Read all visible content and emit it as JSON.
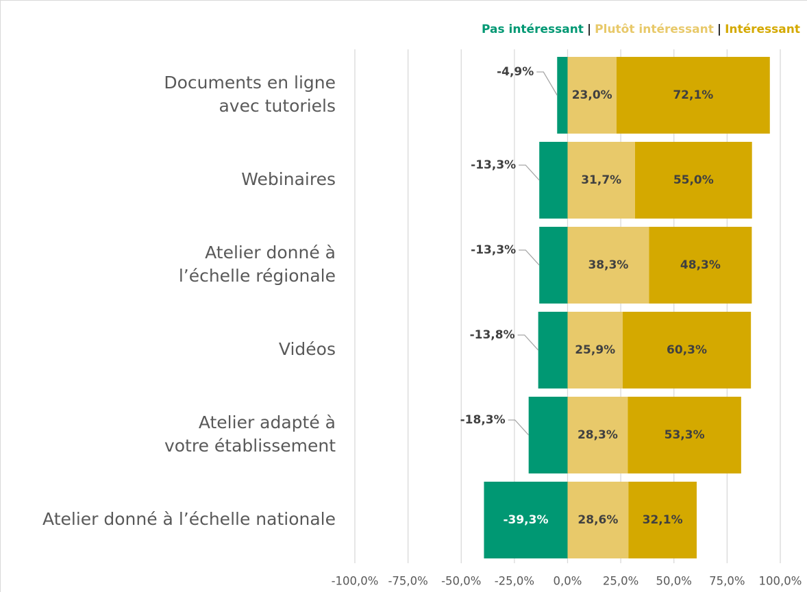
{
  "chart_data": {
    "type": "diverging_bar",
    "categories": [
      "Documents en ligne\navec tutoriels",
      "Webinaires",
      "Atelier donné à\nl’échelle régionale",
      "Vidéos",
      "Atelier adapté à\nvotre établissement",
      "Atelier donné à l’échelle nationale"
    ],
    "series": [
      {
        "name": "Pas intéressant",
        "color": "#009873",
        "values": [
          -4.9,
          -13.3,
          -13.3,
          -13.8,
          -18.3,
          -39.3
        ],
        "value_labels": [
          "-4,9%",
          "-13,3%",
          "-13,3%",
          "-13,8%",
          "-18,3%",
          "-39,3%"
        ]
      },
      {
        "name": "Plutôt intéressant",
        "color": "#e8c96a",
        "values": [
          23.0,
          31.7,
          38.3,
          25.9,
          28.3,
          28.6
        ],
        "value_labels": [
          "23,0%",
          "31,7%",
          "38,3%",
          "25,9%",
          "28,3%",
          "28,6%"
        ]
      },
      {
        "name": "Intéressant",
        "color": "#d4a900",
        "values": [
          72.1,
          55.0,
          48.3,
          60.3,
          53.3,
          32.1
        ],
        "value_labels": [
          "72,1%",
          "55,0%",
          "48,3%",
          "60,3%",
          "53,3%",
          "32,1%"
        ]
      }
    ],
    "legend_separator": "|",
    "xlim": [
      -100,
      100
    ],
    "xticks": [
      {
        "value": -100,
        "label": "-100,0%"
      },
      {
        "value": -75,
        "label": "-75,0%"
      },
      {
        "value": -50,
        "label": "-50,0%"
      },
      {
        "value": -25,
        "label": "-25,0%"
      },
      {
        "value": 0,
        "label": "0,0%"
      },
      {
        "value": 25,
        "label": "25,0%"
      },
      {
        "value": 50,
        "label": "50,0%"
      },
      {
        "value": 75,
        "label": "75,0%"
      },
      {
        "value": 100,
        "label": "100,0%"
      }
    ],
    "grid": true
  }
}
